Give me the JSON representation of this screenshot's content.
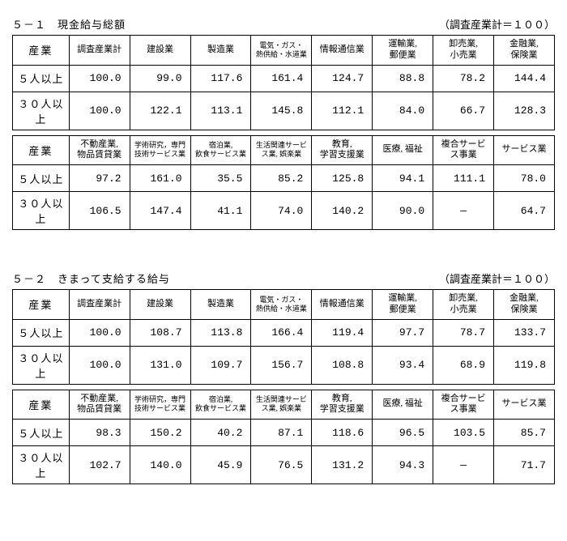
{
  "sections": [
    {
      "number": "５－１",
      "title": "現金給与総額",
      "note": "（調査産業計＝１００）",
      "group1": {
        "headers": [
          "産業",
          "調査産業計",
          "建設業",
          "製造業",
          "電気・ガス・\n熱供給・水道業",
          "情報通信業",
          "運輸業,\n郵便業",
          "卸売業,\n小売業",
          "金融業,\n保険業"
        ],
        "rows": [
          {
            "label": "５人以上",
            "vals": [
              "100.0",
              "99.0",
              "117.6",
              "161.4",
              "124.7",
              "88.8",
              "78.2",
              "144.4"
            ]
          },
          {
            "label": "３０人以上",
            "vals": [
              "100.0",
              "122.1",
              "113.1",
              "145.8",
              "112.1",
              "84.0",
              "66.7",
              "128.3"
            ]
          }
        ]
      },
      "group2": {
        "headers": [
          "産業",
          "不動産業,\n物品賃貸業",
          "学術研究，専門\n技術サービス業",
          "宿泊業,\n飲食サービス業",
          "生活関連サービ\nス業,  娯楽業",
          "教育,\n学習支援業",
          "医療, 福祉",
          "複合サービ\nス事業",
          "サービス業"
        ],
        "rows": [
          {
            "label": "５人以上",
            "vals": [
              "97.2",
              "161.0",
              "35.5",
              "85.2",
              "125.8",
              "94.1",
              "111.1",
              "78.0"
            ]
          },
          {
            "label": "３０人以上",
            "vals": [
              "106.5",
              "147.4",
              "41.1",
              "74.0",
              "140.2",
              "90.0",
              "―",
              "64.7"
            ]
          }
        ]
      }
    },
    {
      "number": "５－２",
      "title": "きまって支給する給与",
      "note": "（調査産業計＝１００）",
      "group1": {
        "headers": [
          "産業",
          "調査産業計",
          "建設業",
          "製造業",
          "電気・ガス・\n熱供給・水道業",
          "情報通信業",
          "運輸業,\n郵便業",
          "卸売業,\n小売業",
          "金融業,\n保険業"
        ],
        "rows": [
          {
            "label": "５人以上",
            "vals": [
              "100.0",
              "108.7",
              "113.8",
              "166.4",
              "119.4",
              "97.7",
              "78.7",
              "133.7"
            ]
          },
          {
            "label": "３０人以上",
            "vals": [
              "100.0",
              "131.0",
              "109.7",
              "156.7",
              "108.8",
              "93.4",
              "68.9",
              "119.8"
            ]
          }
        ]
      },
      "group2": {
        "headers": [
          "産業",
          "不動産業,\n物品賃貸業",
          "学術研究，専門\n技術サービス業",
          "宿泊業,\n飲食サービス業",
          "生活関連サービ\nス業,  娯楽業",
          "教育,\n学習支援業",
          "医療, 福祉",
          "複合サービ\nス事業",
          "サービス業"
        ],
        "rows": [
          {
            "label": "５人以上",
            "vals": [
              "98.3",
              "150.2",
              "40.2",
              "87.1",
              "118.6",
              "96.5",
              "103.5",
              "85.7"
            ]
          },
          {
            "label": "３０人以上",
            "vals": [
              "102.7",
              "140.0",
              "45.9",
              "76.5",
              "131.2",
              "94.3",
              "―",
              "71.7"
            ]
          }
        ]
      }
    }
  ],
  "smallHeaderIdx": {
    "g1": [
      4
    ],
    "g2": [
      2,
      3,
      4
    ]
  }
}
